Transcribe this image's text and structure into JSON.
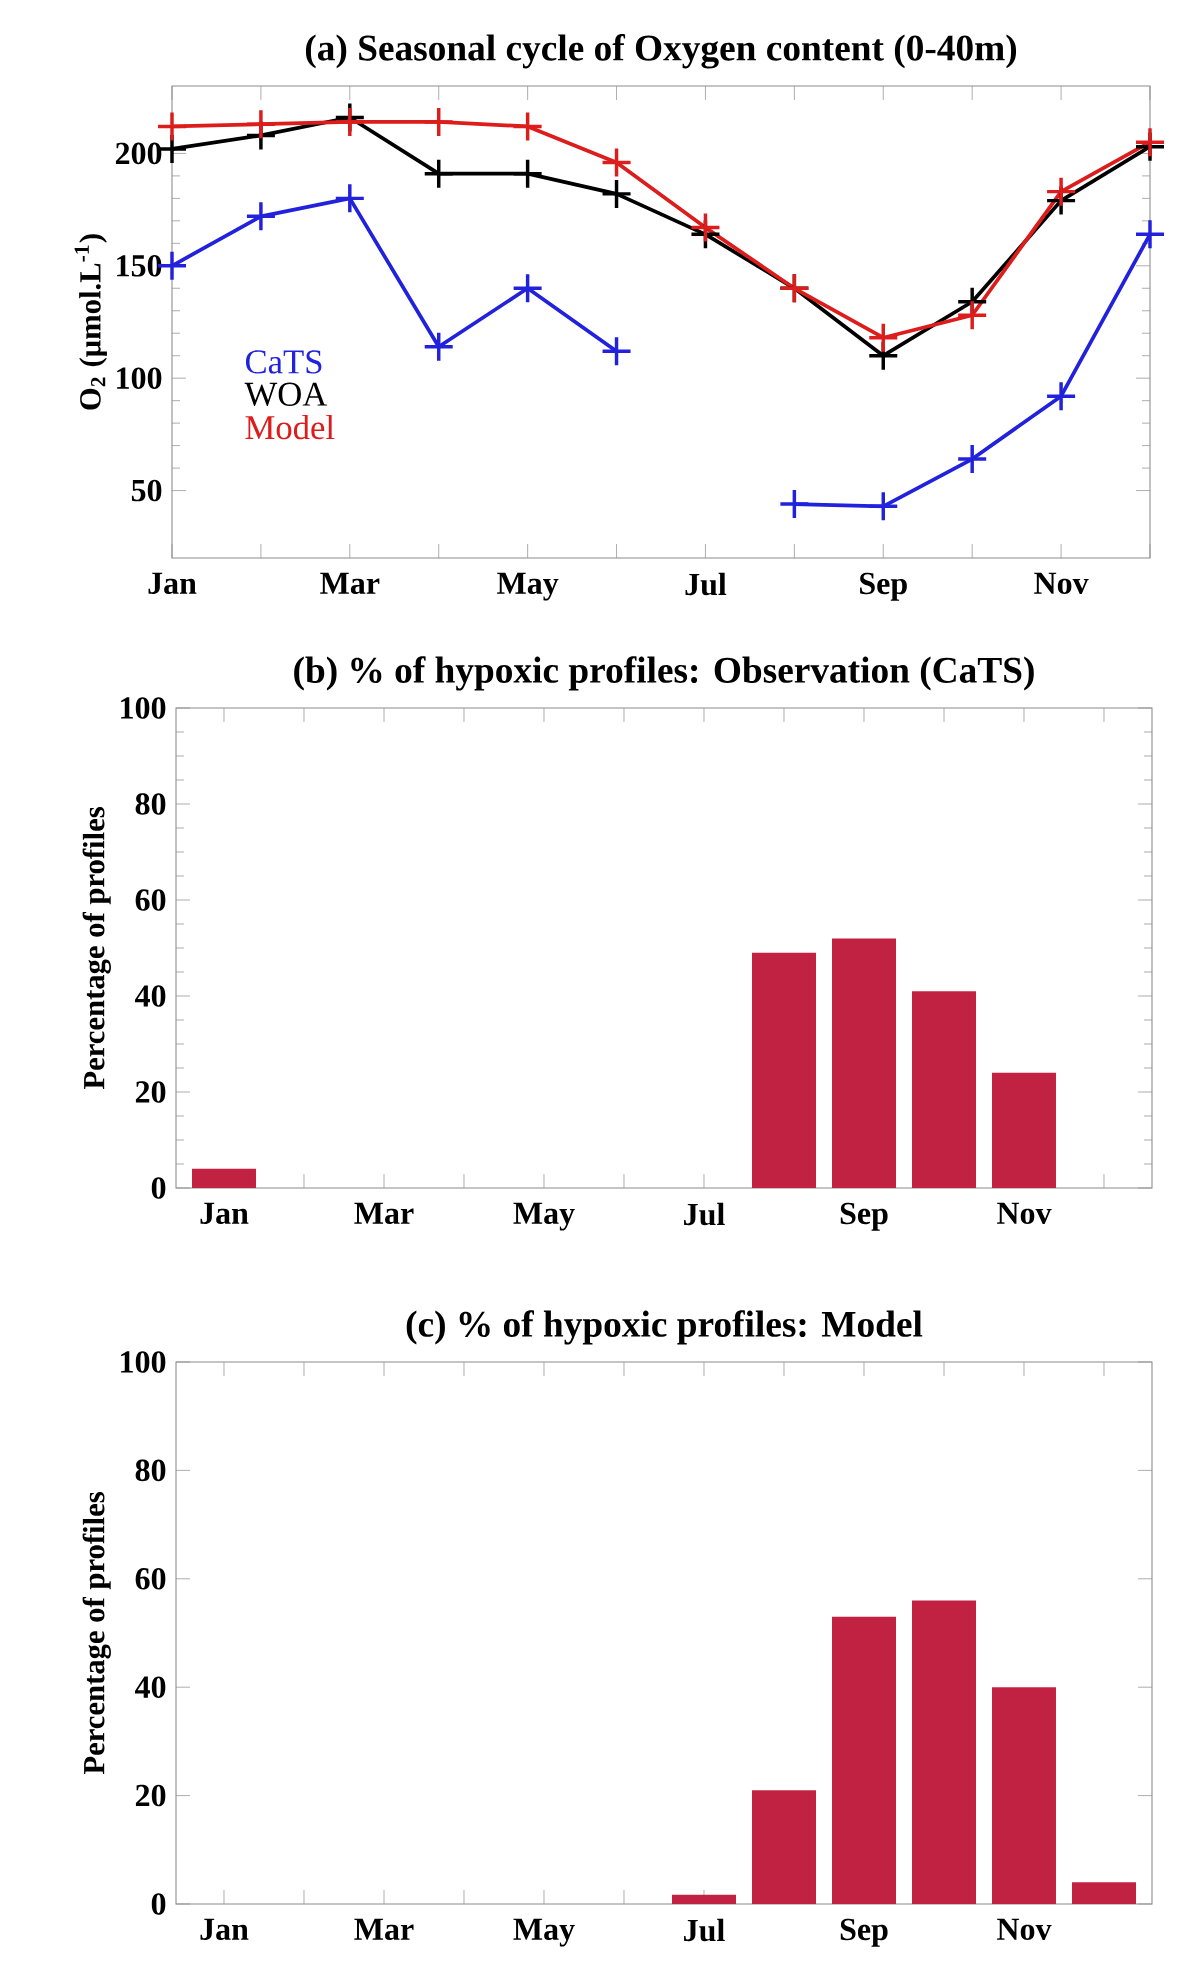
{
  "chart_data": [
    {
      "type": "line",
      "title": "(a) Seasonal cycle of Oxygen content (0-40m)",
      "ylabel": "O$_{2}$ (μmol.L$^{-1}$)",
      "categories": [
        "Jan",
        null,
        "Mar",
        null,
        "May",
        null,
        "Jul",
        null,
        "Sep",
        null,
        "Nov",
        null
      ],
      "ylim": [
        20,
        230
      ],
      "yticks": [
        50,
        100,
        150,
        200
      ],
      "marker": "cross",
      "legend": "bottom left",
      "grid": false,
      "series": [
        {
          "name": "CaTS",
          "color": "#2222dd",
          "values": [
            150,
            172,
            180,
            114,
            140,
            112,
            null,
            44,
            43,
            64,
            92,
            164
          ]
        },
        {
          "name": "WOA",
          "color": "#000000",
          "values": [
            202,
            208,
            216,
            191,
            191,
            182,
            164,
            140,
            110,
            134,
            179,
            203
          ]
        },
        {
          "name": "Model",
          "color": "#dd1c1c",
          "values": [
            212,
            213,
            214,
            214,
            212,
            196,
            167,
            140,
            118,
            128,
            183,
            205
          ]
        }
      ]
    },
    {
      "type": "bar",
      "title": "(b) % of hypoxic profiles: Observation (CaTS)",
      "ylabel": "Percentage of profiles",
      "categories": [
        "Jan",
        null,
        "Mar",
        null,
        "May",
        null,
        "Jul",
        null,
        "Sep",
        null,
        "Nov",
        null
      ],
      "ylim": [
        0,
        100
      ],
      "yticks": [
        0,
        20,
        40,
        60,
        80,
        100
      ],
      "color": "#c22242",
      "grid": false,
      "values": [
        4,
        0,
        0,
        0,
        0,
        0,
        0,
        49,
        52,
        41,
        24,
        0
      ]
    },
    {
      "type": "bar",
      "title": "(c) % of hypoxic profiles: Model",
      "ylabel": "Percentage of profiles",
      "categories": [
        "Jan",
        null,
        "Mar",
        null,
        "May",
        null,
        "Jul",
        null,
        "Sep",
        null,
        "Nov",
        null
      ],
      "ylim": [
        0,
        100
      ],
      "yticks": [
        0,
        20,
        40,
        60,
        80,
        100
      ],
      "color": "#c22242",
      "grid": false,
      "values": [
        0,
        0,
        0,
        0,
        0,
        0,
        1.7,
        21,
        53,
        56,
        40,
        4
      ]
    }
  ]
}
